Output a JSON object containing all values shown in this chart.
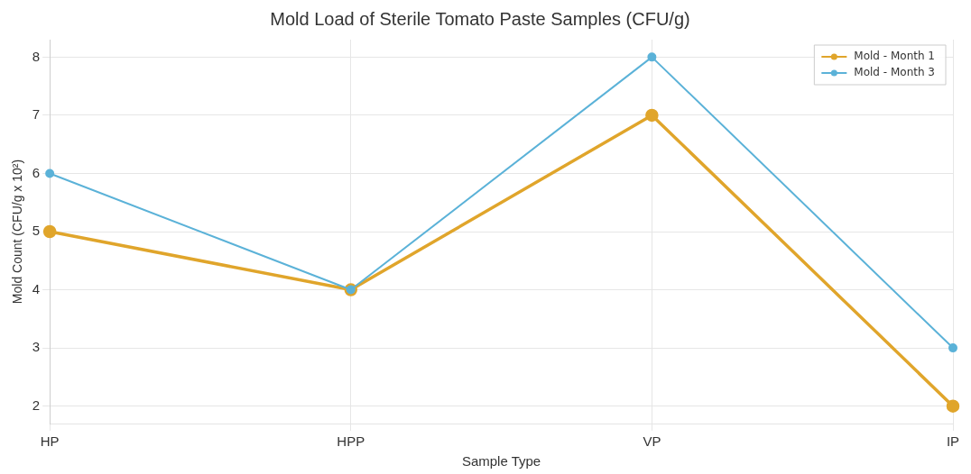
{
  "chart_data": {
    "type": "line",
    "title": "Mold Load of Sterile Tomato Paste Samples (CFU/g)",
    "xlabel": "Sample Type",
    "ylabel": "Mold Count (CFU/g x 10²)",
    "categories": [
      "HP",
      "HPP",
      "VP",
      "IP"
    ],
    "series": [
      {
        "name": "Mold - Month 1",
        "color": "#e0a52b",
        "values": [
          5,
          4,
          7,
          2
        ]
      },
      {
        "name": "Mold - Month 3",
        "color": "#5bb2d8",
        "values": [
          6,
          4,
          8,
          3
        ]
      }
    ],
    "ylim": [
      1.7,
      8.3
    ],
    "yticks": [
      2,
      3,
      4,
      5,
      6,
      7,
      8
    ],
    "grid": true,
    "legend": "top right",
    "marker": "circle",
    "line_style": "solid"
  }
}
